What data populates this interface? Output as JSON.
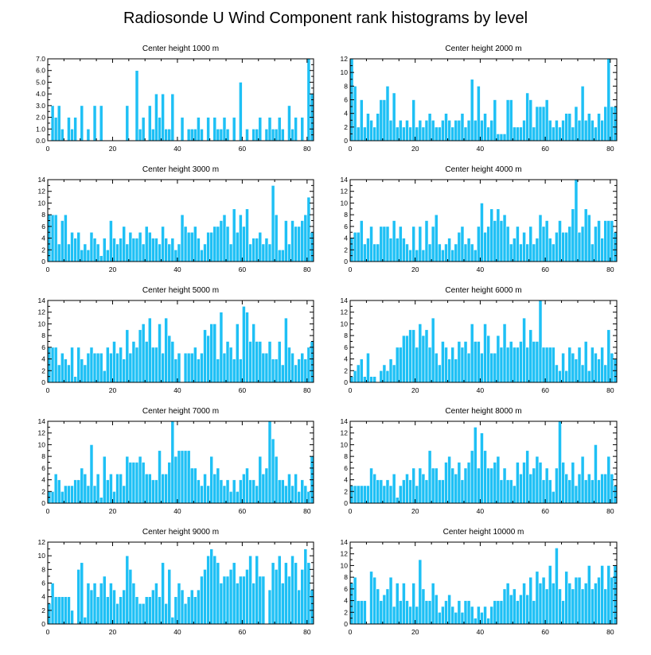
{
  "figure": {
    "title": "Radiosonde U Wind Component rank histograms by level"
  },
  "colors": {
    "bar": "#1ec0f5",
    "bar_edge": "#ffffff",
    "axis": "#000000"
  },
  "chart_data": [
    {
      "type": "bar",
      "title": "Center height 1000 m",
      "xlim": [
        0,
        82
      ],
      "ylim": [
        0,
        7
      ],
      "xticks": [
        "0",
        "20",
        "40",
        "60",
        "80"
      ],
      "yticks": [
        "0.0",
        "1.0",
        "2.0",
        "3.0",
        "4.0",
        "5.0",
        "6.0",
        "7.0"
      ],
      "values": [
        0,
        3,
        2,
        3,
        1,
        0,
        2,
        1,
        2,
        0,
        3,
        0,
        1,
        0,
        3,
        0,
        3,
        0,
        0,
        0,
        0,
        0,
        0,
        0,
        3,
        0,
        0,
        6,
        1,
        2,
        0,
        3,
        1,
        4,
        2,
        4,
        1,
        1,
        4,
        0,
        0,
        2,
        0,
        1,
        1,
        1,
        2,
        1,
        0,
        2,
        0,
        2,
        1,
        1,
        2,
        1,
        0,
        2,
        0,
        5,
        0,
        1,
        0,
        1,
        1,
        2,
        0,
        1,
        2,
        1,
        1,
        2,
        1,
        0,
        3,
        1,
        2,
        0,
        2,
        0,
        7,
        4
      ]
    },
    {
      "type": "bar",
      "title": "Center height 2000 m",
      "xlim": [
        0,
        82
      ],
      "ylim": [
        0,
        12
      ],
      "xticks": [
        "0",
        "20",
        "40",
        "60",
        "80"
      ],
      "yticks": [
        "0",
        "2",
        "4",
        "6",
        "8",
        "10",
        "12"
      ],
      "values": [
        12,
        8,
        2,
        6,
        2,
        4,
        3,
        2,
        4,
        6,
        6,
        8,
        3,
        7,
        2,
        3,
        2,
        3,
        2,
        6,
        2,
        3,
        2,
        3,
        4,
        3,
        2,
        2,
        3,
        4,
        3,
        2,
        3,
        3,
        4,
        2,
        3,
        9,
        3,
        8,
        3,
        4,
        2,
        3,
        6,
        1,
        1,
        1,
        6,
        6,
        2,
        2,
        2,
        3,
        7,
        6,
        2,
        5,
        5,
        5,
        6,
        3,
        2,
        3,
        2,
        3,
        4,
        4,
        2,
        5,
        3,
        8,
        3,
        4,
        3,
        2,
        4,
        3,
        5,
        12,
        5,
        5
      ]
    },
    {
      "type": "bar",
      "title": "Center height 3000 m",
      "xlim": [
        0,
        82
      ],
      "ylim": [
        0,
        14
      ],
      "xticks": [
        "0",
        "20",
        "40",
        "60",
        "80"
      ],
      "yticks": [
        "0",
        "2",
        "4",
        "6",
        "8",
        "10",
        "12",
        "14"
      ],
      "values": [
        8,
        8,
        8,
        3,
        7,
        8,
        3,
        5,
        4,
        5,
        2,
        3,
        2,
        5,
        4,
        3,
        1,
        4,
        2,
        7,
        4,
        3,
        4,
        6,
        3,
        5,
        4,
        4,
        5,
        3,
        6,
        5,
        4,
        4,
        3,
        6,
        4,
        3,
        4,
        2,
        3,
        8,
        6,
        5,
        5,
        6,
        4,
        2,
        3,
        5,
        5,
        6,
        6,
        7,
        8,
        6,
        3,
        9,
        5,
        8,
        6,
        9,
        3,
        4,
        4,
        5,
        3,
        4,
        3,
        13,
        8,
        2,
        2,
        7,
        3,
        7,
        6,
        6,
        7,
        8,
        11,
        5
      ]
    },
    {
      "type": "bar",
      "title": "Center height 4000 m",
      "xlim": [
        0,
        82
      ],
      "ylim": [
        0,
        14
      ],
      "xticks": [
        "0",
        "20",
        "40",
        "60",
        "80"
      ],
      "yticks": [
        "0",
        "2",
        "4",
        "6",
        "8",
        "10",
        "12",
        "14"
      ],
      "values": [
        4,
        5,
        5,
        7,
        3,
        4,
        6,
        3,
        3,
        6,
        6,
        6,
        4,
        7,
        4,
        6,
        4,
        3,
        2,
        6,
        2,
        6,
        2,
        7,
        3,
        6,
        8,
        3,
        2,
        3,
        4,
        2,
        3,
        5,
        6,
        3,
        4,
        3,
        2,
        6,
        10,
        5,
        6,
        9,
        7,
        9,
        7,
        8,
        6,
        3,
        4,
        6,
        3,
        5,
        3,
        6,
        3,
        4,
        8,
        6,
        7,
        4,
        3,
        5,
        7,
        5,
        5,
        6,
        9,
        14,
        5,
        6,
        9,
        8,
        3,
        6,
        7,
        4,
        7,
        7,
        7,
        5
      ]
    },
    {
      "type": "bar",
      "title": "Center height 5000 m",
      "xlim": [
        0,
        82
      ],
      "ylim": [
        0,
        14
      ],
      "xticks": [
        "0",
        "20",
        "40",
        "60",
        "80"
      ],
      "yticks": [
        "0",
        "2",
        "4",
        "6",
        "8",
        "10",
        "12",
        "14"
      ],
      "values": [
        6,
        6,
        6,
        3,
        5,
        4,
        3,
        6,
        1,
        6,
        4,
        3,
        5,
        6,
        5,
        5,
        5,
        2,
        6,
        5,
        7,
        5,
        6,
        4,
        9,
        5,
        7,
        6,
        9,
        10,
        7,
        11,
        6,
        6,
        10,
        5,
        11,
        8,
        7,
        4,
        5,
        0,
        5,
        5,
        5,
        6,
        4,
        5,
        9,
        8,
        10,
        10,
        4,
        12,
        5,
        7,
        6,
        4,
        10,
        4,
        13,
        12,
        7,
        10,
        7,
        7,
        5,
        5,
        7,
        4,
        4,
        7,
        3,
        11,
        6,
        5,
        3,
        4,
        5,
        4,
        6,
        7
      ]
    },
    {
      "type": "bar",
      "title": "Center height 6000 m",
      "xlim": [
        0,
        82
      ],
      "ylim": [
        0,
        14
      ],
      "xticks": [
        "0",
        "20",
        "40",
        "60",
        "80"
      ],
      "yticks": [
        "0",
        "2",
        "4",
        "6",
        "8",
        "10",
        "12",
        "14"
      ],
      "values": [
        1,
        2,
        3,
        4,
        1,
        5,
        1,
        1,
        0,
        2,
        3,
        2,
        4,
        3,
        6,
        6,
        8,
        8,
        9,
        9,
        6,
        10,
        8,
        9,
        6,
        11,
        5,
        3,
        7,
        6,
        4,
        6,
        4,
        7,
        6,
        7,
        5,
        10,
        7,
        7,
        5,
        10,
        8,
        5,
        5,
        8,
        6,
        10,
        6,
        7,
        6,
        6,
        7,
        11,
        6,
        9,
        7,
        7,
        14,
        6,
        6,
        6,
        6,
        3,
        2,
        5,
        2,
        6,
        5,
        4,
        6,
        3,
        7,
        2,
        6,
        5,
        4,
        6,
        3,
        9,
        5,
        4
      ]
    },
    {
      "type": "bar",
      "title": "Center height 7000 m",
      "xlim": [
        0,
        82
      ],
      "ylim": [
        0,
        14
      ],
      "xticks": [
        "0",
        "20",
        "40",
        "60",
        "80"
      ],
      "yticks": [
        "0",
        "2",
        "4",
        "6",
        "8",
        "10",
        "12",
        "14"
      ],
      "values": [
        2,
        2,
        5,
        4,
        2,
        3,
        3,
        3,
        4,
        4,
        6,
        5,
        3,
        10,
        3,
        5,
        1,
        8,
        4,
        5,
        2,
        5,
        5,
        3,
        8,
        7,
        7,
        7,
        8,
        7,
        5,
        5,
        4,
        4,
        9,
        5,
        5,
        7,
        14,
        8,
        9,
        9,
        9,
        9,
        6,
        6,
        4,
        3,
        5,
        3,
        8,
        5,
        6,
        4,
        3,
        4,
        2,
        4,
        2,
        4,
        5,
        6,
        4,
        4,
        3,
        8,
        5,
        6,
        14,
        11,
        8,
        4,
        4,
        3,
        5,
        3,
        5,
        2,
        4,
        3,
        2,
        8
      ]
    },
    {
      "type": "bar",
      "title": "Center height 8000 m",
      "xlim": [
        0,
        82
      ],
      "ylim": [
        0,
        14
      ],
      "xticks": [
        "0",
        "20",
        "40",
        "60",
        "80"
      ],
      "yticks": [
        "0",
        "2",
        "4",
        "6",
        "8",
        "10",
        "12",
        "14"
      ],
      "values": [
        3,
        3,
        3,
        3,
        3,
        3,
        6,
        5,
        4,
        4,
        3,
        4,
        3,
        5,
        1,
        3,
        4,
        5,
        4,
        6,
        3,
        6,
        5,
        4,
        9,
        6,
        6,
        4,
        4,
        7,
        8,
        6,
        5,
        7,
        4,
        6,
        7,
        9,
        13,
        6,
        12,
        9,
        6,
        6,
        7,
        8,
        4,
        6,
        4,
        4,
        3,
        7,
        5,
        7,
        9,
        5,
        6,
        8,
        7,
        4,
        6,
        4,
        2,
        6,
        14,
        7,
        5,
        4,
        7,
        3,
        5,
        8,
        4,
        5,
        4,
        10,
        4,
        5,
        5,
        8,
        5,
        3
      ]
    },
    {
      "type": "bar",
      "title": "Center height 9000 m",
      "xlim": [
        0,
        82
      ],
      "ylim": [
        0,
        12
      ],
      "xticks": [
        "0",
        "20",
        "40",
        "60",
        "80"
      ],
      "yticks": [
        "0",
        "2",
        "4",
        "6",
        "8",
        "10",
        "12"
      ],
      "values": [
        3,
        6,
        4,
        4,
        4,
        4,
        4,
        2,
        0,
        8,
        9,
        1,
        6,
        5,
        6,
        4,
        6,
        7,
        4,
        6,
        5,
        3,
        4,
        5,
        10,
        8,
        6,
        4,
        3,
        3,
        4,
        4,
        5,
        6,
        4,
        9,
        3,
        8,
        1,
        4,
        6,
        5,
        3,
        4,
        5,
        4,
        5,
        7,
        8,
        10,
        11,
        10,
        9,
        6,
        7,
        7,
        8,
        9,
        6,
        7,
        7,
        8,
        10,
        6,
        10,
        7,
        7,
        0,
        5,
        9,
        8,
        10,
        6,
        9,
        7,
        10,
        9,
        5,
        8,
        11,
        9,
        5
      ]
    },
    {
      "type": "bar",
      "title": "Center height 10000 m",
      "xlim": [
        0,
        82
      ],
      "ylim": [
        0,
        14
      ],
      "xticks": [
        "0",
        "20",
        "40",
        "60",
        "80"
      ],
      "yticks": [
        "0",
        "2",
        "4",
        "6",
        "8",
        "10",
        "12",
        "14"
      ],
      "values": [
        7,
        8,
        4,
        4,
        4,
        0,
        9,
        8,
        6,
        4,
        5,
        6,
        8,
        3,
        7,
        4,
        7,
        4,
        3,
        7,
        3,
        11,
        6,
        4,
        4,
        7,
        5,
        2,
        3,
        4,
        5,
        3,
        2,
        4,
        2,
        4,
        4,
        3,
        1,
        3,
        2,
        3,
        1,
        3,
        4,
        4,
        4,
        6,
        7,
        5,
        6,
        4,
        5,
        7,
        5,
        8,
        4,
        9,
        7,
        8,
        6,
        10,
        7,
        13,
        6,
        4,
        9,
        7,
        6,
        8,
        8,
        6,
        7,
        10,
        6,
        7,
        8,
        10,
        6,
        10,
        8,
        10
      ]
    }
  ]
}
